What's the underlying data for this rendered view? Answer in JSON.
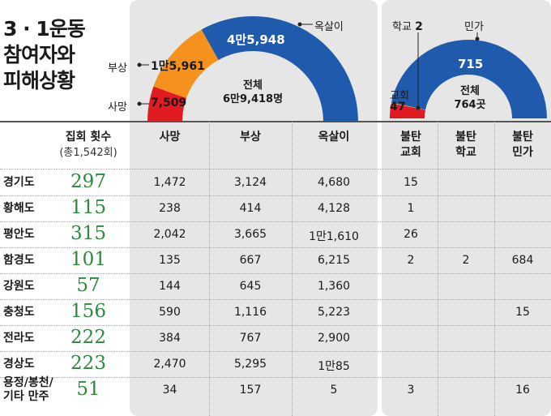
{
  "title": "3 · 1운동\n참여자와\n피해상황",
  "colors": {
    "death": "#e21b23",
    "injury": "#f5921e",
    "imprisoned": "#1f5aad",
    "count_green": "#2c8a3a"
  },
  "headers": {
    "gatherings": "집회 횟수",
    "gatherings_sub": "(총1,542회)",
    "death": "사망",
    "injury": "부상",
    "imprisoned": "옥살이",
    "church": "불탄 교회",
    "school": "불탄 학교",
    "house": "불탄 민가"
  },
  "left_chart_labels": {
    "imprisoned": "옥살이",
    "imprisoned_value": "4만5,948",
    "injury": "부상",
    "injury_value": "1만5,961",
    "death": "사망",
    "death_value": "7,509",
    "total_label": "전체",
    "total_value": "6만9,418명"
  },
  "right_chart_labels": {
    "school": "학교",
    "school_value": "2",
    "house": "민가",
    "house_value": "715",
    "church": "교회",
    "church_value": "47",
    "total_label": "전체",
    "total_value": "764곳"
  },
  "rows": [
    {
      "region": "경기도",
      "gatherings": "297",
      "death": "1,472",
      "injury": "3,124",
      "imprisoned": "4,680",
      "church": "15",
      "school": "",
      "house": ""
    },
    {
      "region": "황해도",
      "gatherings": "115",
      "death": "238",
      "injury": "414",
      "imprisoned": "4,128",
      "church": "1",
      "school": "",
      "house": ""
    },
    {
      "region": "평안도",
      "gatherings": "315",
      "death": "2,042",
      "injury": "3,665",
      "imprisoned": "1만1,610",
      "church": "26",
      "school": "",
      "house": ""
    },
    {
      "region": "함경도",
      "gatherings": "101",
      "death": "135",
      "injury": "667",
      "imprisoned": "6,215",
      "church": "2",
      "school": "2",
      "house": "684"
    },
    {
      "region": "강원도",
      "gatherings": "57",
      "death": "144",
      "injury": "645",
      "imprisoned": "1,360",
      "church": "",
      "school": "",
      "house": ""
    },
    {
      "region": "충청도",
      "gatherings": "156",
      "death": "590",
      "injury": "1,116",
      "imprisoned": "5,223",
      "church": "",
      "school": "",
      "house": "15"
    },
    {
      "region": "전라도",
      "gatherings": "222",
      "death": "384",
      "injury": "767",
      "imprisoned": "2,900",
      "church": "",
      "school": "",
      "house": ""
    },
    {
      "region": "경상도",
      "gatherings": "223",
      "death": "2,470",
      "injury": "5,295",
      "imprisoned": "1만85",
      "church": "",
      "school": "",
      "house": ""
    },
    {
      "region": "용정/봉천/\n기타 만주",
      "gatherings": "51",
      "death": "34",
      "injury": "157",
      "imprisoned": "5",
      "church": "3",
      "school": "",
      "house": "16"
    }
  ],
  "chart_data": [
    {
      "type": "pie",
      "categories": [
        "사망",
        "부상",
        "옥살이"
      ],
      "values": [
        7509,
        15961,
        45948
      ]
    },
    {
      "type": "pie",
      "categories": [
        "교회",
        "학교",
        "민가"
      ],
      "values": [
        47,
        2,
        715
      ]
    },
    {
      "type": "table",
      "columns": [
        "집회 횟수",
        "사망",
        "부상",
        "옥살이",
        "불탄 교회",
        "불탄 학교",
        "불탄 민가"
      ],
      "rows": [
        [
          "경기도",
          297,
          1472,
          3124,
          4680,
          15,
          null,
          null
        ],
        [
          "황해도",
          115,
          238,
          414,
          4128,
          1,
          null,
          null
        ],
        [
          "평안도",
          315,
          2042,
          3665,
          11610,
          26,
          null,
          null
        ],
        [
          "함경도",
          101,
          135,
          667,
          6215,
          2,
          2,
          684
        ],
        [
          "강원도",
          57,
          144,
          645,
          1360,
          null,
          null,
          null
        ],
        [
          "충청도",
          156,
          590,
          1116,
          5223,
          null,
          null,
          15
        ],
        [
          "전라도",
          222,
          384,
          767,
          2900,
          null,
          null,
          null
        ],
        [
          "경상도",
          223,
          2470,
          5295,
          10085,
          null,
          null,
          null
        ],
        [
          "용정/봉천/기타 만주",
          51,
          34,
          157,
          5,
          3,
          null,
          16
        ]
      ]
    }
  ]
}
